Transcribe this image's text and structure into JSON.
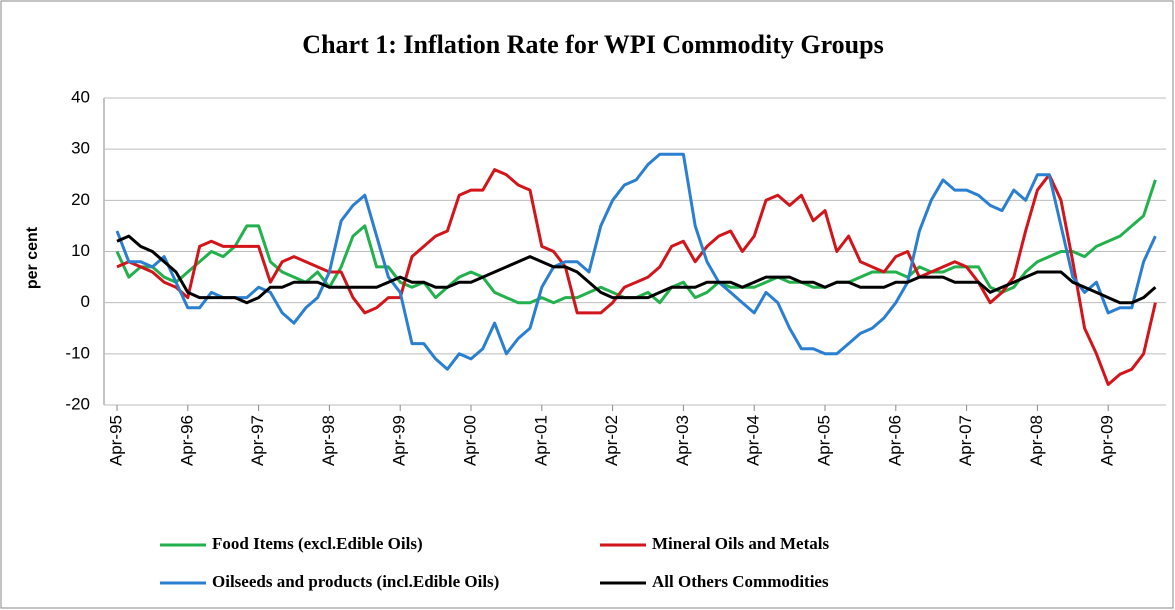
{
  "chart_data": {
    "type": "line",
    "title": "Chart 1: Inflation Rate for WPI Commodity Groups",
    "y_label": "per cent",
    "categories": [
      "Apr-95",
      null,
      null,
      null,
      null,
      null,
      "Apr-96",
      null,
      null,
      null,
      null,
      null,
      "Apr-97",
      null,
      null,
      null,
      null,
      null,
      "Apr-98",
      null,
      null,
      null,
      null,
      null,
      "Apr-99",
      null,
      null,
      null,
      null,
      null,
      "Apr-00",
      null,
      null,
      null,
      null,
      null,
      "Apr-01",
      null,
      null,
      null,
      null,
      null,
      "Apr-02",
      null,
      null,
      null,
      null,
      null,
      "Apr-03",
      null,
      null,
      null,
      null,
      null,
      "Apr-04",
      null,
      null,
      null,
      null,
      null,
      "Apr-05",
      null,
      null,
      null,
      null,
      null,
      "Apr-06",
      null,
      null,
      null,
      null,
      null,
      "Apr-07",
      null,
      null,
      null,
      null,
      null,
      "Apr-08",
      null,
      null,
      null,
      null,
      null,
      "Apr-09",
      null,
      null,
      null,
      null
    ],
    "series": [
      {
        "name": "Food Items (excl.Edible Oils)",
        "color": "#22b14c",
        "values": [
          10,
          5,
          7,
          7,
          5,
          4,
          6,
          8,
          10,
          9,
          11,
          15,
          15,
          8,
          6,
          5,
          4,
          6,
          3,
          7,
          13,
          15,
          7,
          7,
          4,
          3,
          4,
          1,
          3,
          5,
          6,
          5,
          2,
          1,
          0,
          0,
          1,
          0,
          1,
          1,
          2,
          3,
          2,
          1,
          1,
          2,
          0,
          3,
          4,
          1,
          2,
          4,
          3,
          3,
          3,
          4,
          5,
          4,
          4,
          3,
          3,
          4,
          4,
          5,
          6,
          6,
          6,
          5,
          7,
          6,
          6,
          7,
          7,
          7,
          3,
          2,
          3,
          6,
          8,
          9,
          10,
          10,
          9,
          11,
          12,
          13,
          15,
          17,
          24
        ]
      },
      {
        "name": "Mineral Oils and Metals",
        "color": "#d2151b",
        "values": [
          7,
          8,
          7,
          6,
          4,
          3,
          1,
          11,
          12,
          11,
          11,
          11,
          11,
          4,
          8,
          9,
          8,
          7,
          6,
          6,
          1,
          -2,
          -1,
          1,
          1,
          9,
          11,
          13,
          14,
          21,
          22,
          22,
          26,
          25,
          23,
          22,
          11,
          10,
          7,
          -2,
          -2,
          -2,
          0,
          3,
          4,
          5,
          7,
          11,
          12,
          8,
          11,
          13,
          14,
          10,
          13,
          20,
          21,
          19,
          21,
          16,
          18,
          10,
          13,
          8,
          7,
          6,
          9,
          10,
          5,
          6,
          7,
          8,
          7,
          4,
          0,
          2,
          5,
          14,
          22,
          25,
          20,
          8,
          -5,
          -10,
          -16,
          -14,
          -13,
          -10,
          0
        ]
      },
      {
        "name": "Oilseeds and products (incl.Edible Oils)",
        "color": "#2b7fd0",
        "values": [
          14,
          8,
          8,
          7,
          9,
          4,
          -1,
          -1,
          2,
          1,
          1,
          1,
          3,
          2,
          -2,
          -4,
          -1,
          1,
          6,
          16,
          19,
          21,
          13,
          5,
          2,
          -8,
          -8,
          -11,
          -13,
          -10,
          -11,
          -9,
          -4,
          -10,
          -7,
          -5,
          3,
          7,
          8,
          8,
          6,
          15,
          20,
          23,
          24,
          27,
          29,
          29,
          29,
          15,
          8,
          4,
          2,
          0,
          -2,
          2,
          0,
          -5,
          -9,
          -9,
          -10,
          -10,
          -8,
          -6,
          -5,
          -3,
          0,
          4,
          14,
          20,
          24,
          22,
          22,
          21,
          19,
          18,
          22,
          20,
          25,
          25,
          15,
          5,
          2,
          4,
          -2,
          -1,
          -1,
          8,
          13
        ]
      },
      {
        "name": "All Others Commodities",
        "color": "#000000",
        "values": [
          12,
          13,
          11,
          10,
          8,
          6,
          2,
          1,
          1,
          1,
          1,
          0,
          1,
          3,
          3,
          4,
          4,
          4,
          3,
          3,
          3,
          3,
          3,
          4,
          5,
          4,
          4,
          3,
          3,
          4,
          4,
          5,
          6,
          7,
          8,
          9,
          8,
          7,
          7,
          6,
          4,
          2,
          1,
          1,
          1,
          1,
          2,
          3,
          3,
          3,
          4,
          4,
          4,
          3,
          4,
          5,
          5,
          5,
          4,
          4,
          3,
          4,
          4,
          3,
          3,
          3,
          4,
          4,
          5,
          5,
          5,
          4,
          4,
          4,
          2,
          3,
          4,
          5,
          6,
          6,
          6,
          4,
          3,
          2,
          1,
          0,
          0,
          1,
          3
        ]
      }
    ],
    "ylim": [
      -20,
      40
    ],
    "yticks": [
      -20,
      -10,
      0,
      10,
      20,
      30,
      40
    ],
    "grid": true,
    "legend": "bottom"
  }
}
